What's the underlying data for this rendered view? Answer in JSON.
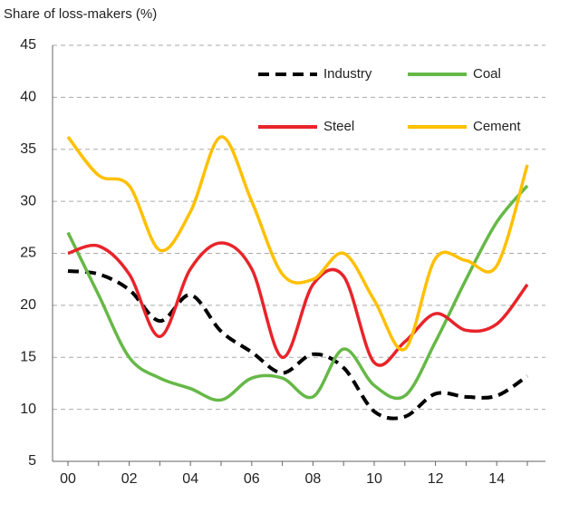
{
  "chart_data": {
    "type": "line",
    "ylabel": "Share of loss-makers  (%)",
    "categories": [
      "00",
      null,
      "02",
      null,
      "04",
      null,
      "06",
      null,
      "08",
      null,
      "10",
      null,
      "12",
      null,
      "14",
      null
    ],
    "series": [
      {
        "name": "Industry",
        "color": "#000000",
        "line_style": "dashed",
        "values": [
          23.3,
          23,
          21.5,
          18.5,
          21,
          17.5,
          15.5,
          13.5,
          15.3,
          14,
          9.8,
          9.3,
          11.5,
          11.2,
          11.3,
          13.2
        ]
      },
      {
        "name": "Coal",
        "color": "#66b847",
        "line_style": "solid",
        "values": [
          27,
          21,
          15,
          13,
          12,
          10.9,
          13,
          13,
          11.2,
          15.8,
          12.3,
          11.3,
          16.5,
          22.5,
          28,
          31.5
        ]
      },
      {
        "name": "Steel",
        "color": "#e8242a",
        "line_style": "solid",
        "values": [
          25,
          25.7,
          23,
          17,
          23.5,
          26,
          23.5,
          15,
          22,
          22.8,
          14.5,
          16.5,
          19.2,
          17.6,
          18.2,
          22
        ]
      },
      {
        "name": "Cement",
        "color": "#ffc000",
        "line_style": "solid",
        "values": [
          36.2,
          32.5,
          31.5,
          25.3,
          29,
          36.2,
          30,
          23,
          22.5,
          25,
          20.5,
          15.8,
          24.5,
          24.3,
          23.8,
          33.5
        ]
      }
    ],
    "ylim": [
      5,
      45
    ],
    "yticks": [
      5,
      10,
      15,
      20,
      25,
      30,
      35,
      40,
      45
    ],
    "grid": true
  }
}
